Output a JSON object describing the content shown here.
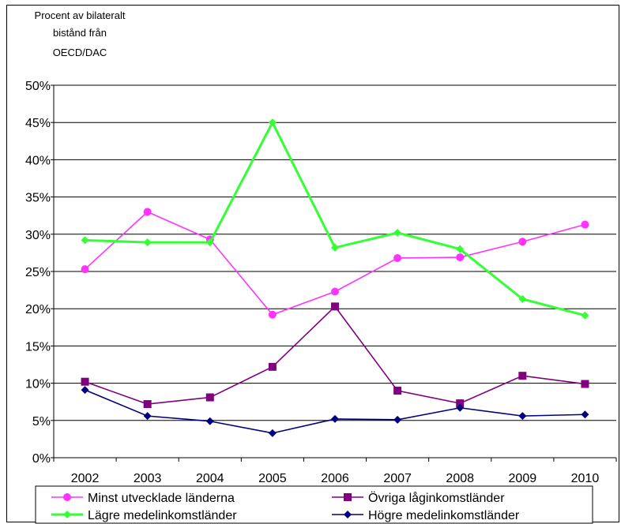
{
  "chart_data": {
    "type": "line",
    "ylabel_lines": [
      "Procent av bilateralt",
      "bistånd från",
      "OECD/DAC"
    ],
    "categories": [
      "2002",
      "2003",
      "2004",
      "2005",
      "2006",
      "2007",
      "2008",
      "2009",
      "2010"
    ],
    "ylim": [
      0,
      50
    ],
    "yticks": [
      {
        "value": 0,
        "label": "0%"
      },
      {
        "value": 5,
        "label": "5%"
      },
      {
        "value": 10,
        "label": "10%"
      },
      {
        "value": 15,
        "label": "15%"
      },
      {
        "value": 20,
        "label": "20%"
      },
      {
        "value": 25,
        "label": "25%"
      },
      {
        "value": 30,
        "label": "30%"
      },
      {
        "value": 35,
        "label": "35%"
      },
      {
        "value": 40,
        "label": "40%"
      },
      {
        "value": 45,
        "label": "45%"
      },
      {
        "value": 50,
        "label": "50%"
      }
    ],
    "grid": "horizontal",
    "legend_position": "bottom",
    "series": [
      {
        "name": "Minst utvecklade länderna",
        "color": "#FF33FF",
        "marker": "circle",
        "values": [
          25.3,
          33.0,
          29.3,
          19.2,
          22.3,
          26.8,
          26.9,
          29.0,
          31.3
        ]
      },
      {
        "name": "Övriga låginkomstländer",
        "color": "#800080",
        "marker": "square",
        "values": [
          10.2,
          7.2,
          8.1,
          12.2,
          20.3,
          9.0,
          7.3,
          11.0,
          9.9
        ]
      },
      {
        "name": "Lägre medelinkomstländer",
        "color": "#33FF33",
        "marker": "diamond",
        "values": [
          29.2,
          28.9,
          28.9,
          45.0,
          28.2,
          30.2,
          28.0,
          21.3,
          19.1
        ]
      },
      {
        "name": "Högre medelinkomstländer",
        "color": "#000080",
        "marker": "diamond",
        "values": [
          9.1,
          5.6,
          4.9,
          3.3,
          5.2,
          5.1,
          6.7,
          5.6,
          5.8
        ]
      }
    ]
  }
}
